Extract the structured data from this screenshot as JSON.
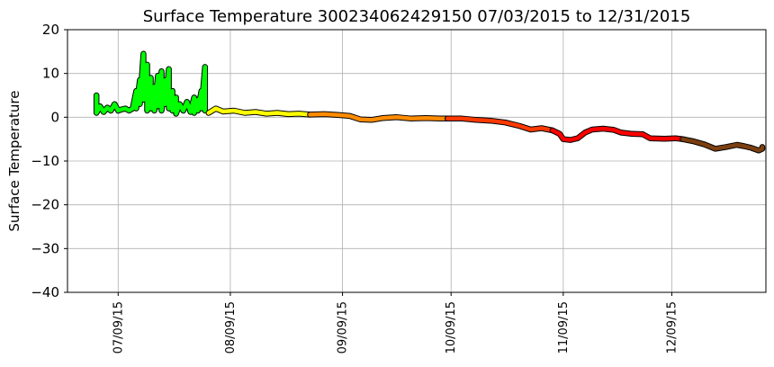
{
  "chart_data": {
    "type": "line",
    "title": "Surface Temperature 300234062429150  07/03/2015 to 12/31/2015",
    "xlabel": "",
    "ylabel": "Surface Temperature",
    "x_range": [
      "2015-06-25",
      "2016-01-04"
    ],
    "ylim": [
      -40,
      20
    ],
    "y_ticks": [
      20,
      10,
      0,
      -10,
      -20,
      -30,
      -40
    ],
    "y_tick_labels": [
      "20",
      "10",
      "0",
      "−10",
      "−20",
      "−30",
      "−40"
    ],
    "x_ticks": [
      "2015-07-09",
      "2015-08-09",
      "2015-09-09",
      "2015-10-09",
      "2015-11-09",
      "2015-12-09"
    ],
    "x_tick_labels": [
      "07/09/15",
      "08/09/15",
      "09/09/15",
      "10/09/15",
      "11/09/15",
      "12/09/15"
    ],
    "grid": true,
    "legend": "none",
    "series": [
      {
        "color": "#00ff00",
        "points": [
          [
            "2015-07-03",
            5.0
          ],
          [
            "2015-07-03",
            1.0
          ],
          [
            "2015-07-04",
            2.5
          ],
          [
            "2015-07-05",
            1.2
          ],
          [
            "2015-07-06",
            2.2
          ],
          [
            "2015-07-07",
            1.5
          ],
          [
            "2015-07-08",
            3.0
          ],
          [
            "2015-07-09",
            1.5
          ],
          [
            "2015-07-10",
            1.8
          ],
          [
            "2015-07-11",
            2.0
          ],
          [
            "2015-07-12",
            1.5
          ],
          [
            "2015-07-13",
            2.0
          ],
          [
            "2015-07-14",
            6.0
          ],
          [
            "2015-07-14",
            2.0
          ],
          [
            "2015-07-15",
            8.5
          ],
          [
            "2015-07-15",
            3.0
          ],
          [
            "2015-07-16",
            14.5
          ],
          [
            "2015-07-16",
            4.0
          ],
          [
            "2015-07-17",
            12.0
          ],
          [
            "2015-07-17",
            1.5
          ],
          [
            "2015-07-18",
            9.0
          ],
          [
            "2015-07-18",
            2.0
          ],
          [
            "2015-07-19",
            7.0
          ],
          [
            "2015-07-19",
            1.5
          ],
          [
            "2015-07-20",
            9.5
          ],
          [
            "2015-07-20",
            2.5
          ],
          [
            "2015-07-21",
            10.5
          ],
          [
            "2015-07-21",
            1.5
          ],
          [
            "2015-07-22",
            8.5
          ],
          [
            "2015-07-22",
            3.0
          ],
          [
            "2015-07-23",
            11.0
          ],
          [
            "2015-07-23",
            2.0
          ],
          [
            "2015-07-24",
            6.0
          ],
          [
            "2015-07-24",
            1.5
          ],
          [
            "2015-07-25",
            4.5
          ],
          [
            "2015-07-25",
            0.8
          ],
          [
            "2015-07-26",
            3.0
          ],
          [
            "2015-07-27",
            1.5
          ],
          [
            "2015-07-28",
            3.5
          ],
          [
            "2015-07-29",
            1.2
          ],
          [
            "2015-07-30",
            4.5
          ],
          [
            "2015-07-30",
            1.0
          ],
          [
            "2015-07-31",
            4.0
          ],
          [
            "2015-07-31",
            1.5
          ],
          [
            "2015-08-01",
            6.0
          ],
          [
            "2015-08-01",
            2.0
          ],
          [
            "2015-08-02",
            11.5
          ],
          [
            "2015-08-02",
            1.5
          ]
        ]
      },
      {
        "color": "#ffff00",
        "points": [
          [
            "2015-08-03",
            1.0
          ],
          [
            "2015-08-05",
            2.0
          ],
          [
            "2015-08-07",
            1.3
          ],
          [
            "2015-08-10",
            1.5
          ],
          [
            "2015-08-13",
            1.0
          ],
          [
            "2015-08-16",
            1.2
          ],
          [
            "2015-08-19",
            0.8
          ],
          [
            "2015-08-22",
            1.0
          ],
          [
            "2015-08-25",
            0.7
          ],
          [
            "2015-08-28",
            0.8
          ],
          [
            "2015-08-31",
            0.6
          ]
        ]
      },
      {
        "color": "#ff8c00",
        "points": [
          [
            "2015-08-31",
            0.6
          ],
          [
            "2015-09-04",
            0.7
          ],
          [
            "2015-09-08",
            0.5
          ],
          [
            "2015-09-11",
            0.3
          ],
          [
            "2015-09-14",
            -0.5
          ],
          [
            "2015-09-17",
            -0.6
          ],
          [
            "2015-09-20",
            -0.2
          ],
          [
            "2015-09-24",
            0.0
          ],
          [
            "2015-09-28",
            -0.3
          ],
          [
            "2015-10-02",
            -0.2
          ],
          [
            "2015-10-06",
            -0.3
          ],
          [
            "2015-10-08",
            -0.3
          ]
        ]
      },
      {
        "color": "#ff3a00",
        "points": [
          [
            "2015-10-08",
            -0.3
          ],
          [
            "2015-10-12",
            -0.3
          ],
          [
            "2015-10-16",
            -0.6
          ],
          [
            "2015-10-20",
            -0.8
          ],
          [
            "2015-10-24",
            -1.2
          ],
          [
            "2015-10-28",
            -2.0
          ],
          [
            "2015-10-31",
            -2.8
          ],
          [
            "2015-11-03",
            -2.5
          ],
          [
            "2015-11-06",
            -3.0
          ]
        ]
      },
      {
        "color": "#ff0000",
        "points": [
          [
            "2015-11-06",
            -3.0
          ],
          [
            "2015-11-08",
            -3.8
          ],
          [
            "2015-11-09",
            -5.0
          ],
          [
            "2015-11-11",
            -5.2
          ],
          [
            "2015-11-13",
            -4.8
          ],
          [
            "2015-11-15",
            -3.5
          ],
          [
            "2015-11-17",
            -2.8
          ],
          [
            "2015-11-20",
            -2.6
          ],
          [
            "2015-11-23",
            -2.9
          ],
          [
            "2015-11-25",
            -3.5
          ],
          [
            "2015-11-28",
            -3.8
          ],
          [
            "2015-12-01",
            -3.9
          ],
          [
            "2015-12-03",
            -4.8
          ],
          [
            "2015-12-07",
            -4.9
          ],
          [
            "2015-12-10",
            -4.8
          ],
          [
            "2015-12-12",
            -5.0
          ]
        ]
      },
      {
        "color": "#7b3f10",
        "points": [
          [
            "2015-12-12",
            -5.0
          ],
          [
            "2015-12-15",
            -5.5
          ],
          [
            "2015-12-18",
            -6.2
          ],
          [
            "2015-12-21",
            -7.2
          ],
          [
            "2015-12-24",
            -6.8
          ],
          [
            "2015-12-27",
            -6.3
          ],
          [
            "2015-12-29",
            -6.6
          ],
          [
            "2015-12-31",
            -7.0
          ],
          [
            "2016-01-02",
            -7.6
          ],
          [
            "2016-01-03",
            -7.2
          ],
          [
            "2016-01-03",
            -6.8
          ]
        ]
      }
    ]
  }
}
